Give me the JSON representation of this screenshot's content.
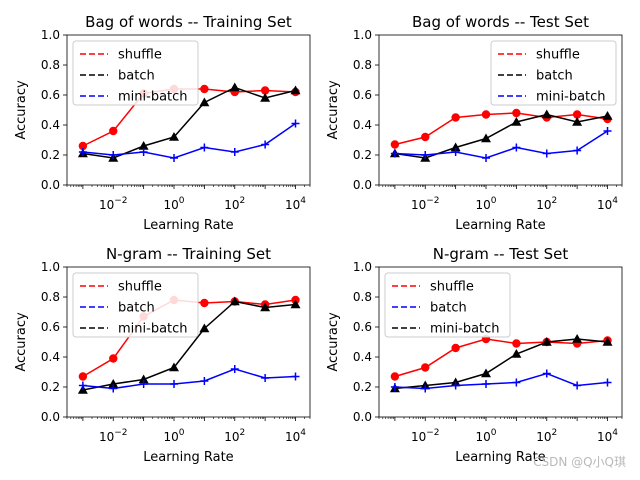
{
  "watermark": "CSDN @Q小Q琪",
  "chart_data": [
    {
      "type": "line",
      "title": "Bag of words -- Training Set",
      "xlabel": "Learning Rate",
      "ylabel": "Accuracy",
      "xscale": "log",
      "xlim": [
        0.0003,
        30000
      ],
      "ylim": [
        0,
        1
      ],
      "yticks": [
        "0.0",
        "0.2",
        "0.4",
        "0.6",
        "0.8",
        "1.0"
      ],
      "xticks": [
        {
          "base": "10",
          "exp": "−2"
        },
        {
          "base": "10",
          "exp": "0"
        },
        {
          "base": "10",
          "exp": "2"
        },
        {
          "base": "10",
          "exp": "4"
        }
      ],
      "legend_loc": "upper left",
      "legend": [
        {
          "label": "shuffle",
          "color": "#ff0000"
        },
        {
          "label": "batch",
          "color": "#000000"
        },
        {
          "label": "mini-batch",
          "color": "#0000ff"
        }
      ],
      "x": [
        0.001,
        0.01,
        0.1,
        1,
        10,
        100,
        1000,
        10000
      ],
      "series": [
        {
          "color": "#ff0000",
          "marker": "circle",
          "values": [
            0.26,
            0.36,
            0.61,
            0.64,
            0.64,
            0.62,
            0.63,
            0.62
          ]
        },
        {
          "color": "#000000",
          "marker": "triangle",
          "values": [
            0.21,
            0.18,
            0.26,
            0.32,
            0.55,
            0.65,
            0.58,
            0.63
          ]
        },
        {
          "color": "#0000ff",
          "marker": "plus",
          "values": [
            0.22,
            0.2,
            0.22,
            0.18,
            0.25,
            0.22,
            0.27,
            0.41
          ]
        }
      ]
    },
    {
      "type": "line",
      "title": "Bag of words -- Test Set",
      "xlabel": "Learning Rate",
      "ylabel": "Accuracy",
      "xscale": "log",
      "xlim": [
        0.0003,
        30000
      ],
      "ylim": [
        0,
        1
      ],
      "yticks": [
        "0.0",
        "0.2",
        "0.4",
        "0.6",
        "0.8",
        "1.0"
      ],
      "xticks": [
        {
          "base": "10",
          "exp": "−2"
        },
        {
          "base": "10",
          "exp": "0"
        },
        {
          "base": "10",
          "exp": "2"
        },
        {
          "base": "10",
          "exp": "4"
        }
      ],
      "legend_loc": "upper right",
      "legend": [
        {
          "label": "shuffle",
          "color": "#ff0000"
        },
        {
          "label": "batch",
          "color": "#000000"
        },
        {
          "label": "mini-batch",
          "color": "#0000ff"
        }
      ],
      "x": [
        0.001,
        0.01,
        0.1,
        1,
        10,
        100,
        1000,
        10000
      ],
      "series": [
        {
          "color": "#ff0000",
          "marker": "circle",
          "values": [
            0.27,
            0.32,
            0.45,
            0.47,
            0.48,
            0.45,
            0.47,
            0.44
          ]
        },
        {
          "color": "#000000",
          "marker": "triangle",
          "values": [
            0.21,
            0.18,
            0.25,
            0.31,
            0.42,
            0.47,
            0.42,
            0.46
          ]
        },
        {
          "color": "#0000ff",
          "marker": "plus",
          "values": [
            0.21,
            0.2,
            0.22,
            0.18,
            0.25,
            0.21,
            0.23,
            0.36
          ]
        }
      ]
    },
    {
      "type": "line",
      "title": "N-gram -- Training Set",
      "xlabel": "Learning Rate",
      "ylabel": "Accuracy",
      "xscale": "log",
      "xlim": [
        0.0003,
        30000
      ],
      "ylim": [
        0,
        1
      ],
      "yticks": [
        "0.0",
        "0.2",
        "0.4",
        "0.6",
        "0.8",
        "1.0"
      ],
      "xticks": [
        {
          "base": "10",
          "exp": "−2"
        },
        {
          "base": "10",
          "exp": "0"
        },
        {
          "base": "10",
          "exp": "2"
        },
        {
          "base": "10",
          "exp": "4"
        }
      ],
      "legend_loc": "upper left",
      "legend": [
        {
          "label": "shuffle",
          "color": "#ff0000"
        },
        {
          "label": "batch",
          "color": "#0000ff"
        },
        {
          "label": "mini-batch",
          "color": "#000000"
        }
      ],
      "x": [
        0.001,
        0.01,
        0.1,
        1,
        10,
        100,
        1000,
        10000
      ],
      "series": [
        {
          "color": "#ff0000",
          "marker": "circle",
          "values": [
            0.27,
            0.39,
            0.67,
            0.78,
            0.76,
            0.77,
            0.75,
            0.78
          ]
        },
        {
          "color": "#000000",
          "marker": "triangle",
          "values": [
            0.18,
            0.22,
            0.25,
            0.33,
            0.59,
            0.77,
            0.73,
            0.75
          ]
        },
        {
          "color": "#0000ff",
          "marker": "plus",
          "values": [
            0.21,
            0.19,
            0.22,
            0.22,
            0.24,
            0.32,
            0.26,
            0.27
          ]
        }
      ]
    },
    {
      "type": "line",
      "title": "N-gram -- Test Set",
      "xlabel": "Learning Rate",
      "ylabel": "Accuracy",
      "xscale": "log",
      "xlim": [
        0.0003,
        30000
      ],
      "ylim": [
        0,
        1
      ],
      "yticks": [
        "0.0",
        "0.2",
        "0.4",
        "0.6",
        "0.8",
        "1.0"
      ],
      "xticks": [
        {
          "base": "10",
          "exp": "−2"
        },
        {
          "base": "10",
          "exp": "0"
        },
        {
          "base": "10",
          "exp": "2"
        },
        {
          "base": "10",
          "exp": "4"
        }
      ],
      "legend_loc": "upper left",
      "legend": [
        {
          "label": "shuffle",
          "color": "#ff0000"
        },
        {
          "label": "batch",
          "color": "#0000ff"
        },
        {
          "label": "mini-batch",
          "color": "#000000"
        }
      ],
      "x": [
        0.001,
        0.01,
        0.1,
        1,
        10,
        100,
        1000,
        10000
      ],
      "series": [
        {
          "color": "#ff0000",
          "marker": "circle",
          "values": [
            0.27,
            0.33,
            0.46,
            0.52,
            0.49,
            0.5,
            0.49,
            0.51
          ]
        },
        {
          "color": "#000000",
          "marker": "triangle",
          "values": [
            0.19,
            0.21,
            0.23,
            0.29,
            0.42,
            0.5,
            0.52,
            0.5
          ]
        },
        {
          "color": "#0000ff",
          "marker": "plus",
          "values": [
            0.2,
            0.19,
            0.21,
            0.22,
            0.23,
            0.29,
            0.21,
            0.23
          ]
        }
      ]
    }
  ]
}
